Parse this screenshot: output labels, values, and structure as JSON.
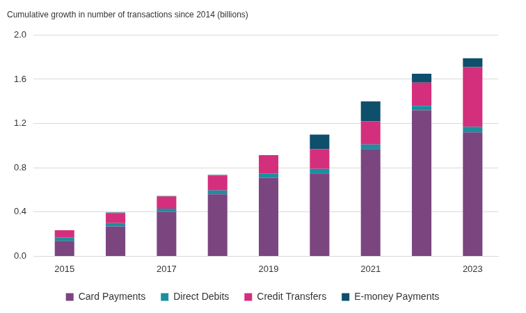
{
  "chart_data": {
    "type": "bar",
    "title": "Cumulative growth in number of transactions since 2014 (billions)",
    "categories": [
      "2015",
      null,
      "2017",
      null,
      "2019",
      null,
      "2021",
      null,
      "2023"
    ],
    "series": [
      {
        "name": "Card Payments",
        "color": "#7b4580",
        "values": [
          0.14,
          0.27,
          0.4,
          0.56,
          0.71,
          0.75,
          0.97,
          1.32,
          1.12
        ]
      },
      {
        "name": "Direct Debits",
        "color": "#1a8fa0",
        "values": [
          0.03,
          0.03,
          0.03,
          0.035,
          0.04,
          0.04,
          0.04,
          0.04,
          0.05
        ]
      },
      {
        "name": "Credit Transfers",
        "color": "#d42f7c",
        "values": [
          0.065,
          0.09,
          0.11,
          0.135,
          0.16,
          0.18,
          0.21,
          0.21,
          0.54
        ]
      },
      {
        "name": "E-money Payments",
        "color": "#0e4f6b",
        "values": [
          0,
          0.005,
          0.005,
          0.005,
          0.005,
          0.13,
          0.18,
          0.08,
          0.08
        ]
      }
    ],
    "ylim": [
      0,
      2
    ],
    "yticks": [
      {
        "value": 0,
        "label": "0.0"
      },
      0.4,
      0.8,
      1.2,
      1.6,
      {
        "value": 2,
        "label": "2.0"
      }
    ],
    "stacked": true,
    "grid": true,
    "legend": "bottom"
  }
}
